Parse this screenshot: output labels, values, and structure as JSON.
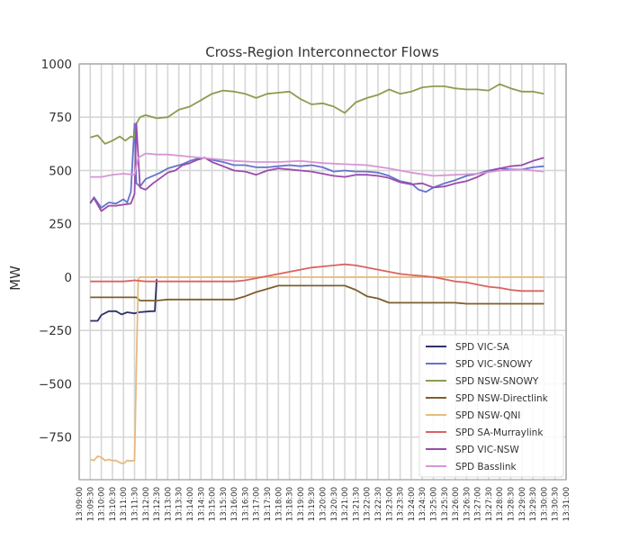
{
  "chart_data": {
    "type": "line",
    "title": "Cross-Region Interconnector Flows",
    "xlabel": "",
    "ylabel": "MW",
    "ylim": [
      -950,
      1000
    ],
    "yticks": [
      -750,
      -500,
      -250,
      0,
      250,
      500,
      750,
      1000
    ],
    "ytick_labels": [
      "−750",
      "−500",
      "−250",
      "0",
      "250",
      "500",
      "750",
      "1000"
    ],
    "xlim": [
      "13:09:00",
      "13:31:00"
    ],
    "xticks": [
      "13:09:00",
      "13:09:30",
      "13:10:00",
      "13:10:30",
      "13:11:00",
      "13:11:30",
      "13:12:00",
      "13:12:30",
      "13:13:00",
      "13:13:30",
      "13:14:00",
      "13:14:30",
      "13:15:00",
      "13:15:30",
      "13:16:00",
      "13:16:30",
      "13:17:00",
      "13:17:30",
      "13:18:00",
      "13:18:30",
      "13:19:00",
      "13:19:30",
      "13:20:00",
      "13:20:30",
      "13:21:00",
      "13:21:30",
      "13:22:00",
      "13:22:30",
      "13:23:00",
      "13:23:30",
      "13:24:00",
      "13:24:30",
      "13:25:00",
      "13:25:30",
      "13:26:00",
      "13:26:30",
      "13:27:00",
      "13:27:30",
      "13:28:00",
      "13:28:30",
      "13:29:00",
      "13:29:30",
      "13:30:00",
      "13:30:30",
      "13:31:00"
    ],
    "grid": true,
    "legend_position": "lower-right",
    "series": [
      {
        "name": "SPD VIC-SA",
        "color": "#2e3268",
        "x": [
          "13:09:30",
          "13:09:50",
          "13:10:00",
          "13:10:20",
          "13:10:40",
          "13:10:55",
          "13:11:10",
          "13:11:30",
          "13:11:40",
          "13:12:00",
          "13:12:15",
          "13:12:25",
          "13:12:30"
        ],
        "y": [
          -205,
          -205,
          -178,
          -160,
          -160,
          -175,
          -165,
          -170,
          -165,
          -162,
          -160,
          -160,
          -10
        ]
      },
      {
        "name": "SPD VIC-SNOWY",
        "color": "#6673cc",
        "x": [
          "13:09:30",
          "13:09:40",
          "13:10:00",
          "13:10:20",
          "13:10:40",
          "13:11:00",
          "13:11:10",
          "13:11:20",
          "13:11:30",
          "13:11:35",
          "13:11:45",
          "13:12:00",
          "13:12:20",
          "13:12:40",
          "13:13:00",
          "13:13:20",
          "13:13:40",
          "13:14:00",
          "13:14:20",
          "13:14:40",
          "13:15:00",
          "13:15:30",
          "13:16:00",
          "13:16:30",
          "13:17:00",
          "13:17:30",
          "13:18:00",
          "13:18:30",
          "13:19:00",
          "13:19:30",
          "13:20:00",
          "13:20:30",
          "13:21:00",
          "13:21:30",
          "13:22:00",
          "13:22:30",
          "13:23:00",
          "13:23:30",
          "13:24:00",
          "13:24:20",
          "13:24:40",
          "13:25:00",
          "13:25:30",
          "13:26:00",
          "13:26:30",
          "13:27:00",
          "13:27:30",
          "13:28:00",
          "13:28:30",
          "13:29:00",
          "13:29:30",
          "13:30:00"
        ],
        "y": [
          345,
          375,
          325,
          350,
          345,
          365,
          350,
          400,
          720,
          440,
          425,
          460,
          475,
          490,
          510,
          520,
          530,
          545,
          555,
          560,
          550,
          540,
          525,
          525,
          515,
          515,
          520,
          525,
          520,
          525,
          515,
          495,
          500,
          495,
          495,
          490,
          475,
          450,
          440,
          410,
          400,
          420,
          440,
          455,
          475,
          485,
          500,
          510,
          505,
          505,
          515,
          520
        ]
      },
      {
        "name": "SPD NSW-SNOWY",
        "color": "#8a9d4f",
        "x": [
          "13:09:30",
          "13:09:50",
          "13:10:10",
          "13:10:30",
          "13:10:50",
          "13:11:05",
          "13:11:20",
          "13:11:30",
          "13:11:35",
          "13:11:45",
          "13:12:00",
          "13:12:30",
          "13:13:00",
          "13:13:30",
          "13:14:00",
          "13:14:30",
          "13:15:00",
          "13:15:30",
          "13:16:00",
          "13:16:30",
          "13:17:00",
          "13:17:30",
          "13:18:00",
          "13:18:30",
          "13:19:00",
          "13:19:30",
          "13:20:00",
          "13:20:30",
          "13:21:00",
          "13:21:30",
          "13:22:00",
          "13:22:30",
          "13:23:00",
          "13:23:30",
          "13:24:00",
          "13:24:30",
          "13:25:00",
          "13:25:30",
          "13:26:00",
          "13:26:30",
          "13:27:00",
          "13:27:30",
          "13:28:00",
          "13:28:30",
          "13:29:00",
          "13:29:30",
          "13:30:00"
        ],
        "y": [
          655,
          665,
          625,
          640,
          660,
          640,
          660,
          655,
          720,
          750,
          760,
          745,
          750,
          785,
          800,
          830,
          860,
          875,
          870,
          860,
          840,
          860,
          865,
          870,
          835,
          810,
          815,
          800,
          770,
          820,
          840,
          855,
          880,
          860,
          870,
          890,
          895,
          895,
          885,
          880,
          880,
          875,
          905,
          885,
          870,
          870,
          860
        ]
      },
      {
        "name": "SPD NSW-Directlink",
        "color": "#7d5f2c",
        "x": [
          "13:09:30",
          "13:11:00",
          "13:11:35",
          "13:11:45",
          "13:12:30",
          "13:13:00",
          "13:14:00",
          "13:15:00",
          "13:16:00",
          "13:16:30",
          "13:17:00",
          "13:17:30",
          "13:18:00",
          "13:18:30",
          "13:19:00",
          "13:20:00",
          "13:21:00",
          "13:21:30",
          "13:22:00",
          "13:22:30",
          "13:23:00",
          "13:24:00",
          "13:25:00",
          "13:26:00",
          "13:26:30",
          "13:27:00",
          "13:28:00",
          "13:29:00",
          "13:30:00"
        ],
        "y": [
          -95,
          -95,
          -95,
          -110,
          -110,
          -105,
          -105,
          -105,
          -105,
          -90,
          -70,
          -55,
          -40,
          -40,
          -40,
          -40,
          -40,
          -60,
          -90,
          -100,
          -120,
          -120,
          -120,
          -120,
          -125,
          -125,
          -125,
          -125,
          -125
        ]
      },
      {
        "name": "SPD NSW-QNI",
        "color": "#e7ba7e",
        "x": [
          "13:09:30",
          "13:09:40",
          "13:09:50",
          "13:10:00",
          "13:10:10",
          "13:10:20",
          "13:10:30",
          "13:10:40",
          "13:10:50",
          "13:11:00",
          "13:11:10",
          "13:11:20",
          "13:11:30",
          "13:11:35",
          "13:11:40",
          "13:11:45",
          "13:12:00",
          "13:13:00",
          "13:15:00",
          "13:20:00",
          "13:25:00",
          "13:30:00"
        ],
        "y": [
          -855,
          -860,
          -840,
          -845,
          -860,
          -855,
          -860,
          -860,
          -870,
          -875,
          -860,
          -862,
          -860,
          -430,
          -10,
          0,
          0,
          0,
          0,
          0,
          0,
          0
        ]
      },
      {
        "name": "SPD SA-Murraylink",
        "color": "#d86461",
        "x": [
          "13:09:30",
          "13:11:00",
          "13:11:30",
          "13:12:00",
          "13:13:00",
          "13:14:00",
          "13:15:00",
          "13:16:00",
          "13:16:30",
          "13:17:00",
          "13:17:30",
          "13:18:00",
          "13:18:30",
          "13:19:00",
          "13:19:30",
          "13:20:00",
          "13:20:30",
          "13:21:00",
          "13:21:30",
          "13:22:00",
          "13:22:30",
          "13:23:00",
          "13:23:30",
          "13:24:00",
          "13:24:30",
          "13:25:00",
          "13:25:30",
          "13:26:00",
          "13:26:30",
          "13:27:00",
          "13:27:30",
          "13:28:00",
          "13:28:30",
          "13:29:00",
          "13:29:30",
          "13:30:00"
        ],
        "y": [
          -20,
          -20,
          -15,
          -20,
          -20,
          -20,
          -20,
          -20,
          -15,
          -5,
          5,
          15,
          25,
          35,
          45,
          50,
          55,
          60,
          55,
          45,
          35,
          25,
          15,
          10,
          5,
          0,
          -10,
          -20,
          -25,
          -35,
          -45,
          -50,
          -60,
          -65,
          -65,
          -65
        ]
      },
      {
        "name": "SPD VIC-NSW",
        "color": "#9b4bab",
        "x": [
          "13:09:30",
          "13:09:40",
          "13:10:00",
          "13:10:20",
          "13:10:40",
          "13:11:00",
          "13:11:20",
          "13:11:30",
          "13:11:35",
          "13:11:45",
          "13:12:00",
          "13:12:20",
          "13:12:40",
          "13:13:00",
          "13:13:20",
          "13:13:40",
          "13:14:00",
          "13:14:20",
          "13:14:40",
          "13:15:00",
          "13:15:30",
          "13:16:00",
          "13:16:30",
          "13:17:00",
          "13:17:30",
          "13:18:00",
          "13:18:30",
          "13:19:00",
          "13:19:30",
          "13:20:00",
          "13:20:30",
          "13:21:00",
          "13:21:30",
          "13:22:00",
          "13:22:30",
          "13:23:00",
          "13:23:30",
          "13:24:00",
          "13:24:30",
          "13:25:00",
          "13:25:30",
          "13:26:00",
          "13:26:30",
          "13:27:00",
          "13:27:30",
          "13:28:00",
          "13:28:30",
          "13:29:00",
          "13:29:30",
          "13:30:00"
        ],
        "y": [
          350,
          370,
          310,
          335,
          335,
          340,
          345,
          390,
          720,
          420,
          410,
          440,
          465,
          490,
          500,
          525,
          535,
          550,
          560,
          540,
          520,
          500,
          495,
          480,
          500,
          510,
          505,
          500,
          495,
          485,
          475,
          470,
          480,
          480,
          475,
          465,
          445,
          435,
          440,
          420,
          425,
          440,
          450,
          470,
          495,
          510,
          520,
          525,
          545,
          560
        ]
      },
      {
        "name": "SPD Basslink",
        "color": "#d895d5",
        "x": [
          "13:09:30",
          "13:10:00",
          "13:10:30",
          "13:11:00",
          "13:11:30",
          "13:11:40",
          "13:12:00",
          "13:12:30",
          "13:13:00",
          "13:13:30",
          "13:14:00",
          "13:15:00",
          "13:16:00",
          "13:17:00",
          "13:18:00",
          "13:19:00",
          "13:20:00",
          "13:21:00",
          "13:22:00",
          "13:23:00",
          "13:24:00",
          "13:25:00",
          "13:26:00",
          "13:27:00",
          "13:28:00",
          "13:29:00",
          "13:30:00"
        ],
        "y": [
          470,
          470,
          480,
          485,
          480,
          560,
          580,
          575,
          575,
          570,
          565,
          555,
          545,
          540,
          540,
          545,
          535,
          530,
          525,
          510,
          490,
          475,
          480,
          485,
          500,
          505,
          495
        ]
      }
    ]
  }
}
